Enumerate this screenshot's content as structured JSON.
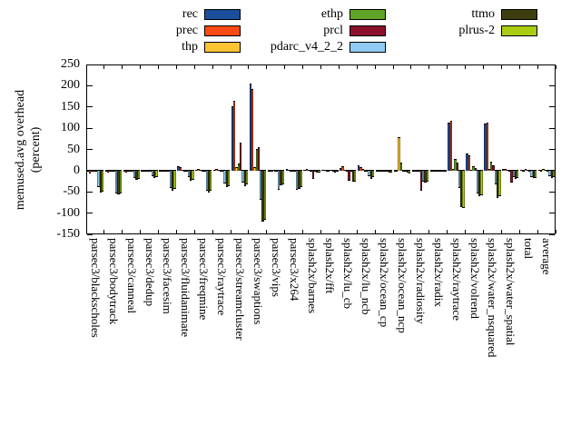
{
  "figure": {
    "background": "#ffffff",
    "y_axis_title_lines": "memused.avg overhead\n(percent)"
  },
  "chart_data": {
    "type": "bar",
    "title": "",
    "xlabel": "",
    "ylabel": "memused.avg overhead (percent)",
    "ylim": [
      -150,
      250
    ],
    "yticks": [
      250,
      200,
      150,
      100,
      50,
      0,
      -50,
      -100,
      -150
    ],
    "grid": false,
    "legend_position": "top",
    "legend_columns": 3,
    "categories": [
      "parsec3/blackscholes",
      "parsec3/bodytrack",
      "parsec3/canneal",
      "parsec3/dedup",
      "parsec3/facesim",
      "parsec3/fluidanimate",
      "parsec3/freqmine",
      "parsec3/raytrace",
      "parsec3/streamcluster",
      "parsec3/swaptions",
      "parsec3/vips",
      "parsec3/x264",
      "splash2x/barnes",
      "splash2x/fft",
      "splash2x/lu_cb",
      "splash2x/lu_ncb",
      "splash2x/ocean_cp",
      "splash2x/ocean_ncp",
      "splash2x/radiosity",
      "splash2x/radix",
      "splash2x/raytrace",
      "splash2x/volrend",
      "splash2x/water_nsquared",
      "splash2x/water_spatial",
      "total",
      "average"
    ],
    "series": [
      {
        "name": "rec",
        "color": "#1b4f9c",
        "values": [
          -1,
          -1,
          -1,
          -1,
          -1,
          10,
          1,
          2,
          151,
          205,
          -1,
          3,
          1,
          2,
          7,
          12,
          -1,
          -1,
          -1,
          -1,
          114,
          41,
          110,
          5,
          1,
          2
        ]
      },
      {
        "name": "prec",
        "color": "#fb4a12",
        "values": [
          -6,
          -5,
          -4,
          -3,
          -3,
          8,
          3,
          3,
          165,
          192,
          -2,
          2,
          4,
          2,
          10,
          9,
          -2,
          -2,
          -2,
          -2,
          118,
          37,
          114,
          3,
          -2,
          -1
        ]
      },
      {
        "name": "thp",
        "color": "#fdc332",
        "values": [
          -1,
          -2,
          -2,
          -1,
          -1,
          1,
          0,
          0,
          8,
          8,
          -1,
          -1,
          0,
          -1,
          2,
          5,
          -1,
          78,
          -2,
          -1,
          3,
          2,
          3,
          2,
          4,
          4
        ]
      },
      {
        "name": "ethp",
        "color": "#60a426",
        "values": [
          -1,
          -2,
          -2,
          -1,
          -1,
          -1,
          -1,
          -1,
          16,
          52,
          -1,
          -1,
          -1,
          -2,
          -2,
          -2,
          -1,
          20,
          -2,
          -1,
          28,
          11,
          22,
          -2,
          0,
          1
        ]
      },
      {
        "name": "prcl",
        "color": "#8b102b",
        "values": [
          -2,
          -2,
          -2,
          -1,
          -1,
          -2,
          -1,
          -1,
          65,
          55,
          -2,
          -2,
          -19,
          1,
          -24,
          -3,
          -2,
          -3,
          -48,
          -2,
          18,
          7,
          12,
          -28,
          -2,
          -2
        ]
      },
      {
        "name": "pdarc_v4_2_2",
        "color": "#8fcbf2",
        "values": [
          -38,
          -54,
          -18,
          -13,
          -40,
          -15,
          -48,
          -30,
          -28,
          -68,
          -46,
          -46,
          -3,
          -3,
          -3,
          -13,
          -3,
          -2,
          -26,
          -2,
          -41,
          -53,
          -32,
          -15,
          -15,
          -14
        ]
      },
      {
        "name": "ttmo",
        "color": "#3d3d10",
        "values": [
          -52,
          -56,
          -22,
          -18,
          -47,
          -23,
          -51,
          -38,
          -37,
          -121,
          -35,
          -42,
          -5,
          -4,
          -27,
          -20,
          -5,
          -4,
          -28,
          -3,
          -86,
          -60,
          -64,
          -20,
          -18,
          -18
        ]
      },
      {
        "name": "plrus-2",
        "color": "#a9cc10",
        "values": [
          -50,
          -53,
          -20,
          -16,
          -44,
          -21,
          -47,
          -36,
          -33,
          -116,
          -33,
          -39,
          -4,
          -3,
          -26,
          -15,
          -4,
          -6,
          -27,
          -3,
          -89,
          -57,
          -61,
          -18,
          -17,
          -16
        ]
      }
    ]
  },
  "layout_text": {
    "note": ""
  }
}
